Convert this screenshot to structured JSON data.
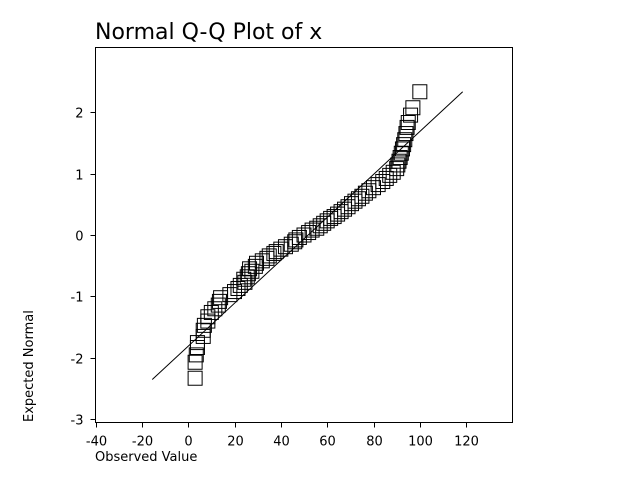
{
  "chart_data": {
    "type": "scatter",
    "title": "Normal Q-Q Plot of x",
    "xlabel": "Observed Value",
    "ylabel": "Expected Normal",
    "xlim": [
      -40,
      140
    ],
    "ylim": [
      -3.05,
      3.05
    ],
    "x_ticks": [
      -40,
      -20,
      0,
      20,
      40,
      60,
      80,
      100,
      120
    ],
    "y_ticks": [
      -3,
      -2,
      -1,
      0,
      1,
      2
    ],
    "x_tick_labels": [
      "-40",
      "-20",
      "0",
      "20",
      "40",
      "60",
      "80",
      "100",
      "120"
    ],
    "y_tick_labels": [
      "-3",
      "-2",
      "-1",
      "0",
      "1",
      "2"
    ],
    "grid": false,
    "legend": "none",
    "reference_line": {
      "x": [
        -15.5,
        118.5
      ],
      "y": [
        -2.35,
        2.33
      ]
    },
    "series": [
      {
        "marker": "square",
        "points": [
          [
            3,
            -2.33
          ],
          [
            3,
            -2.07
          ],
          [
            3.5,
            -1.95
          ],
          [
            4,
            -1.83
          ],
          [
            4,
            -1.75
          ],
          [
            6.5,
            -1.65
          ],
          [
            6.5,
            -1.55
          ],
          [
            7,
            -1.47
          ],
          [
            8.5,
            -1.4
          ],
          [
            8.5,
            -1.33
          ],
          [
            10,
            -1.26
          ],
          [
            11.5,
            -1.2
          ],
          [
            13,
            -1.14
          ],
          [
            13.5,
            -1.08
          ],
          [
            14,
            -1.02
          ],
          [
            18,
            -0.97
          ],
          [
            20,
            -0.92
          ],
          [
            21.5,
            -0.87
          ],
          [
            22.5,
            -0.82
          ],
          [
            24.5,
            -0.77
          ],
          [
            24,
            -0.72
          ],
          [
            25.5,
            -0.68
          ],
          [
            26,
            -0.63
          ],
          [
            27.5,
            -0.59
          ],
          [
            26.5,
            -0.55
          ],
          [
            29,
            -0.51
          ],
          [
            29.5,
            -0.46
          ],
          [
            32,
            -0.42
          ],
          [
            34,
            -0.38
          ],
          [
            35,
            -0.34
          ],
          [
            37,
            -0.3
          ],
          [
            38,
            -0.27
          ],
          [
            40,
            -0.23
          ],
          [
            42,
            -0.19
          ],
          [
            44.5,
            -0.15
          ],
          [
            46,
            -0.11
          ],
          [
            46.5,
            -0.08
          ],
          [
            48,
            -0.04
          ],
          [
            50,
            0.0
          ],
          [
            52,
            0.04
          ],
          [
            53.5,
            0.08
          ],
          [
            55.5,
            0.11
          ],
          [
            57,
            0.15
          ],
          [
            58.5,
            0.19
          ],
          [
            60,
            0.23
          ],
          [
            61.5,
            0.27
          ],
          [
            63,
            0.3
          ],
          [
            64.5,
            0.34
          ],
          [
            66,
            0.38
          ],
          [
            67.5,
            0.42
          ],
          [
            69,
            0.46
          ],
          [
            70.5,
            0.51
          ],
          [
            72,
            0.55
          ],
          [
            73.5,
            0.59
          ],
          [
            75,
            0.63
          ],
          [
            76.5,
            0.68
          ],
          [
            78,
            0.72
          ],
          [
            80,
            0.77
          ],
          [
            82,
            0.82
          ],
          [
            84,
            0.87
          ],
          [
            85.5,
            0.92
          ],
          [
            87,
            0.97
          ],
          [
            88.5,
            1.02
          ],
          [
            90,
            1.08
          ],
          [
            90.5,
            1.14
          ],
          [
            91,
            1.2
          ],
          [
            91.5,
            1.26
          ],
          [
            92,
            1.33
          ],
          [
            92.5,
            1.4
          ],
          [
            93,
            1.47
          ],
          [
            93.5,
            1.55
          ],
          [
            94,
            1.65
          ],
          [
            94.5,
            1.75
          ],
          [
            95,
            1.83
          ],
          [
            96,
            1.95
          ],
          [
            97,
            2.07
          ],
          [
            100,
            2.33
          ]
        ]
      }
    ]
  }
}
